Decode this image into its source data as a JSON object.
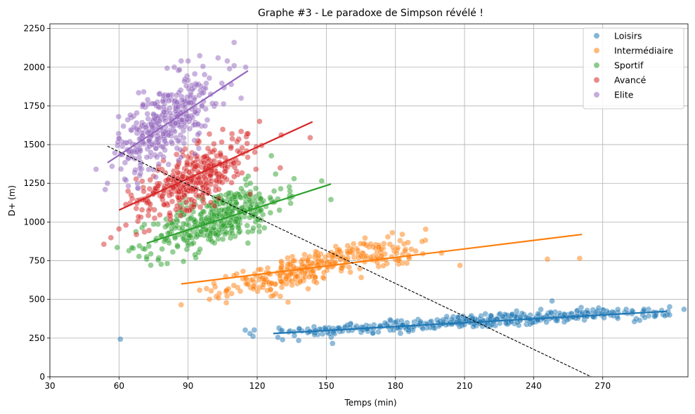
{
  "chart_data": {
    "type": "scatter",
    "title": "Graphe #3 - Le paradoxe de Simpson révélé !",
    "xlabel": "Temps (min)",
    "ylabel": "D+ (m)",
    "xlim": [
      30,
      307
    ],
    "ylim": [
      0,
      2280
    ],
    "xticks": [
      30,
      60,
      90,
      120,
      150,
      180,
      210,
      240,
      270
    ],
    "yticks": [
      0,
      250,
      500,
      750,
      1000,
      1250,
      1500,
      1750,
      2000,
      2250
    ],
    "grid": true,
    "legend_position": "top-right",
    "overall_trend": {
      "style": "dashed",
      "color": "#000000",
      "x": [
        55,
        265
      ],
      "y": [
        1490,
        0
      ]
    },
    "series": [
      {
        "name": "Loisirs",
        "color": "#1f77b4",
        "regression": {
          "x": [
            127,
            298
          ],
          "y": [
            280,
            423
          ]
        },
        "clusters": [
          {
            "cx": 210,
            "cy": 355,
            "sx": 37,
            "sy": 22,
            "slope": 0.82,
            "n": 330
          },
          {
            "cx": 270,
            "cy": 400,
            "sx": 15,
            "sy": 18,
            "slope": 0.6,
            "n": 60
          },
          {
            "cx": 145,
            "cy": 290,
            "sx": 9,
            "sy": 18,
            "slope": 0.5,
            "n": 18
          }
        ],
        "points": [
          [
            129,
            255
          ],
          [
            131,
            240
          ],
          [
            138,
            235
          ],
          [
            248,
            490
          ],
          [
            293,
            398
          ],
          [
            297,
            395
          ],
          [
            299,
            400
          ],
          [
            286,
            365
          ]
        ]
      },
      {
        "name": "Intermédiaire",
        "color": "#ff7f0e",
        "regression": {
          "x": [
            87,
            261
          ],
          "y": [
            600,
            920
          ]
        },
        "clusters": [
          {
            "cx": 142,
            "cy": 700,
            "sx": 17,
            "sy": 48,
            "slope": 3.7,
            "n": 290
          },
          {
            "cx": 178,
            "cy": 780,
            "sx": 10,
            "sy": 35,
            "slope": 1.5,
            "n": 40
          }
        ],
        "points": [
          [
            87,
            465
          ],
          [
            95,
            560
          ],
          [
            98,
            570
          ],
          [
            100,
            555
          ],
          [
            130,
            520
          ],
          [
            127,
            525
          ],
          [
            183,
            920
          ],
          [
            182,
            880
          ],
          [
            208,
            720
          ],
          [
            200,
            800
          ],
          [
            246,
            760
          ],
          [
            260,
            765
          ],
          [
            175,
            860
          ]
        ]
      },
      {
        "name": "Sportif",
        "color": "#2ca02c",
        "regression": {
          "x": [
            72,
            152
          ],
          "y": [
            863,
            1245
          ]
        },
        "clusters": [
          {
            "cx": 103,
            "cy": 1025,
            "sx": 14,
            "sy": 85,
            "slope": 4.8,
            "n": 400
          }
        ],
        "points": [
          [
            72,
            760
          ],
          [
            72,
            775
          ],
          [
            77,
            755
          ],
          [
            88,
            745
          ],
          [
            128,
            1310
          ],
          [
            136,
            1280
          ],
          [
            148,
            1265
          ],
          [
            152,
            1145
          ],
          [
            117,
            1250
          ]
        ]
      },
      {
        "name": "Avancé",
        "color": "#d62728",
        "regression": {
          "x": [
            60,
            144
          ],
          "y": [
            1077,
            1647
          ]
        },
        "clusters": [
          {
            "cx": 92,
            "cy": 1285,
            "sx": 12,
            "sy": 90,
            "slope": 6.2,
            "n": 390
          }
        ],
        "points": [
          [
            60,
            955
          ],
          [
            63,
            980
          ],
          [
            73,
            945
          ],
          [
            116,
            1570
          ],
          [
            121,
            1650
          ],
          [
            143,
            1545
          ],
          [
            113,
            1585
          ],
          [
            130,
            1350
          ]
        ]
      },
      {
        "name": "Elite",
        "color": "#9467bd",
        "regression": {
          "x": [
            55,
            116
          ],
          "y": [
            1383,
            1977
          ]
        },
        "clusters": [
          {
            "cx": 80,
            "cy": 1640,
            "sx": 10,
            "sy": 120,
            "slope": 9.0,
            "n": 380
          }
        ],
        "points": [
          [
            54,
            1210
          ],
          [
            55,
            1250
          ],
          [
            57,
            1360
          ],
          [
            60,
            1540
          ],
          [
            63,
            1270
          ],
          [
            68,
            1250
          ],
          [
            69,
            1300
          ],
          [
            76,
            1290
          ],
          [
            90,
            2040
          ],
          [
            87,
            2040
          ],
          [
            84,
            2000
          ],
          [
            103,
            2060
          ],
          [
            107,
            2040
          ],
          [
            108,
            1990
          ],
          [
            110,
            2010
          ],
          [
            115,
            2000
          ],
          [
            110,
            2160
          ],
          [
            113,
            1800
          ]
        ]
      }
    ]
  }
}
